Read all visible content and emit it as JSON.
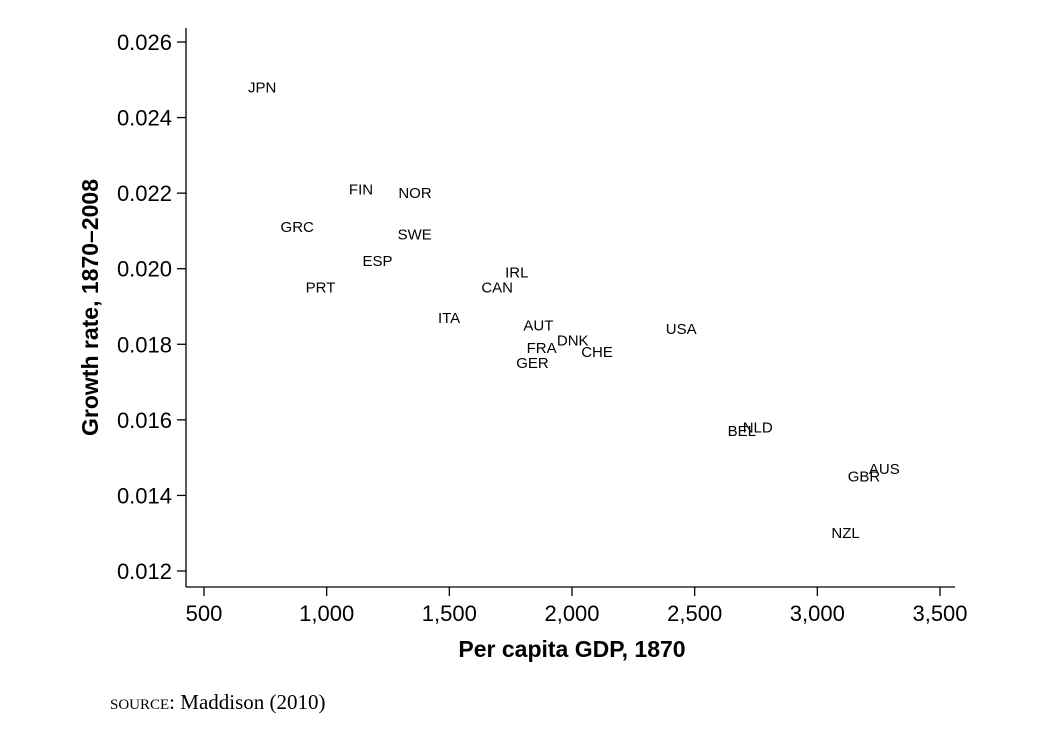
{
  "chart_data": {
    "type": "scatter",
    "xlabel": "Per capita GDP, 1870",
    "ylabel": "Growth rate, 1870–2008",
    "xlim": [
      500,
      3500
    ],
    "ylim": [
      0.012,
      0.026
    ],
    "x_ticks": [
      500,
      1000,
      1500,
      2000,
      2500,
      3000,
      3500
    ],
    "x_tick_labels": [
      "500",
      "1,000",
      "1,500",
      "2,000",
      "2,500",
      "3,000",
      "3,500"
    ],
    "y_ticks": [
      0.012,
      0.014,
      0.016,
      0.018,
      0.02,
      0.022,
      0.024,
      0.026
    ],
    "y_tick_labels": [
      "0.012",
      "0.014",
      "0.016",
      "0.018",
      "0.020",
      "0.022",
      "0.024",
      "0.026"
    ],
    "grid": false,
    "marker": "text-label",
    "points": [
      {
        "label": "JPN",
        "x": 737,
        "y": 0.0248
      },
      {
        "label": "FIN",
        "x": 1140,
        "y": 0.0221
      },
      {
        "label": "NOR",
        "x": 1360,
        "y": 0.022
      },
      {
        "label": "GRC",
        "x": 880,
        "y": 0.0211
      },
      {
        "label": "SWE",
        "x": 1359,
        "y": 0.0209
      },
      {
        "label": "ESP",
        "x": 1207,
        "y": 0.0202
      },
      {
        "label": "PRT",
        "x": 975,
        "y": 0.0195
      },
      {
        "label": "IRL",
        "x": 1775,
        "y": 0.0199
      },
      {
        "label": "CAN",
        "x": 1695,
        "y": 0.0195
      },
      {
        "label": "ITA",
        "x": 1499,
        "y": 0.0187
      },
      {
        "label": "AUT",
        "x": 1863,
        "y": 0.0185
      },
      {
        "label": "DNK",
        "x": 2003,
        "y": 0.0181
      },
      {
        "label": "FRA",
        "x": 1876,
        "y": 0.0179
      },
      {
        "label": "CHE",
        "x": 2102,
        "y": 0.0178
      },
      {
        "label": "GER",
        "x": 1839,
        "y": 0.0175
      },
      {
        "label": "USA",
        "x": 2445,
        "y": 0.0184
      },
      {
        "label": "NLD",
        "x": 2757,
        "y": 0.0158
      },
      {
        "label": "BEL",
        "x": 2692,
        "y": 0.0157
      },
      {
        "label": "AUS",
        "x": 3273,
        "y": 0.0147
      },
      {
        "label": "GBR",
        "x": 3190,
        "y": 0.0145
      },
      {
        "label": "NZL",
        "x": 3115,
        "y": 0.013
      }
    ]
  },
  "source": {
    "prefix": "source:",
    "text": " Maddison (2010)"
  }
}
